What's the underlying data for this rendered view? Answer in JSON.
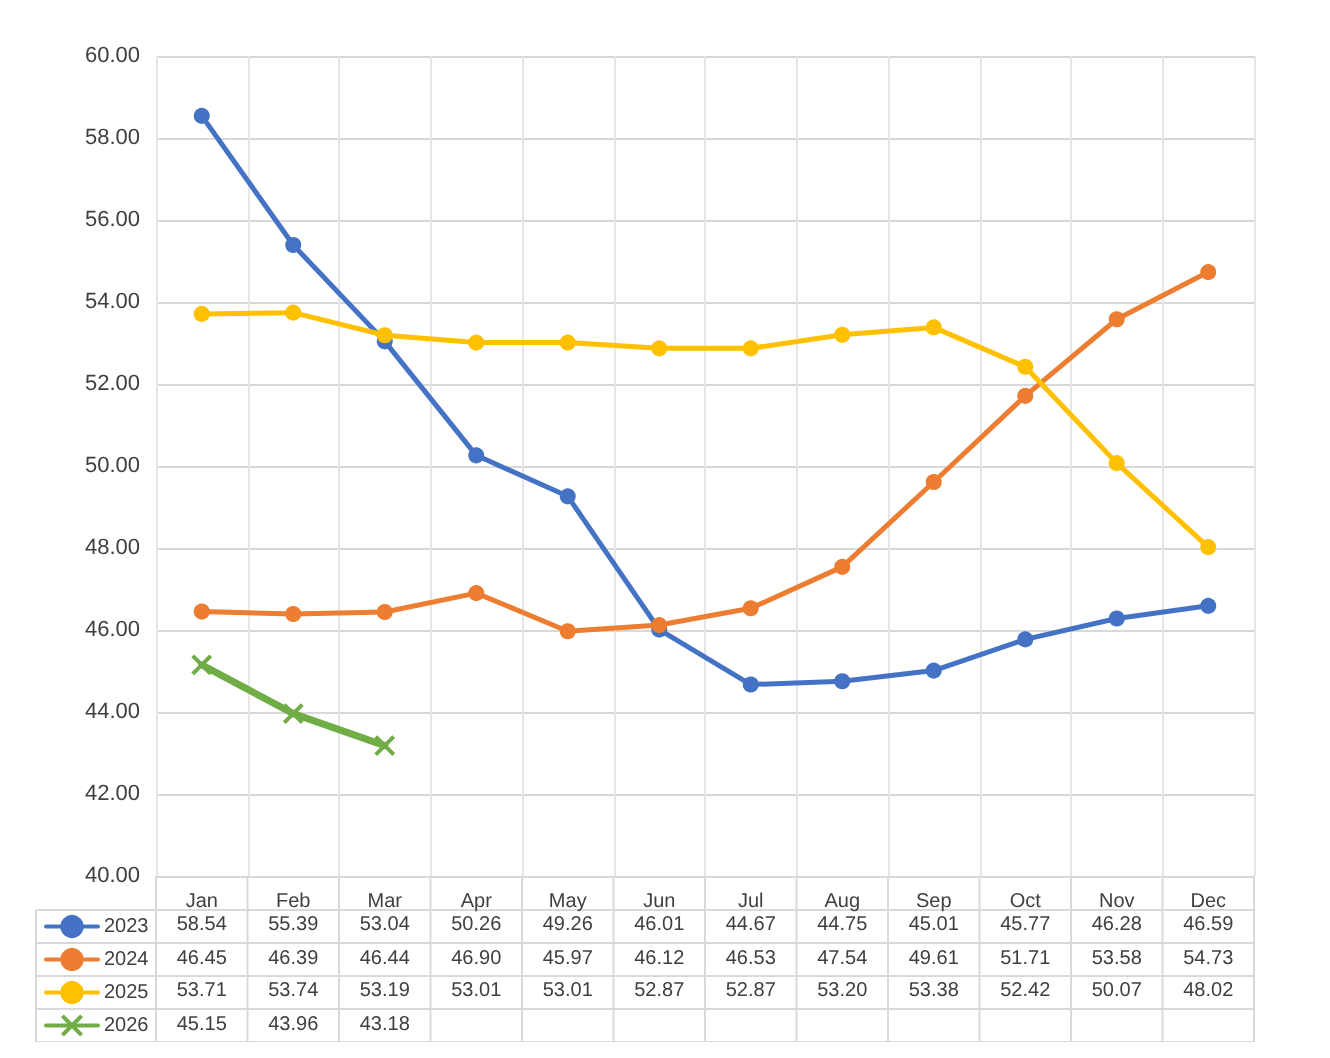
{
  "chart_data": {
    "type": "line",
    "categories": [
      "Jan",
      "Feb",
      "Mar",
      "Apr",
      "May",
      "Jun",
      "Jul",
      "Aug",
      "Sep",
      "Oct",
      "Nov",
      "Dec"
    ],
    "series": [
      {
        "name": "2023",
        "color": "#4472c4",
        "marker": "circle",
        "values": [
          58.54,
          55.39,
          53.04,
          50.26,
          49.26,
          46.01,
          44.67,
          44.75,
          45.01,
          45.77,
          46.28,
          46.59
        ],
        "value_labels": [
          "58.54",
          "55.39",
          "53.04",
          "50.26",
          "49.26",
          "46.01",
          "44.67",
          "44.75",
          "45.01",
          "45.77",
          "46.28",
          "46.59"
        ]
      },
      {
        "name": "2024",
        "color": "#ed7d31",
        "marker": "circle",
        "values": [
          46.45,
          46.39,
          46.44,
          46.9,
          45.97,
          46.12,
          46.53,
          47.54,
          49.61,
          51.71,
          53.58,
          54.73
        ],
        "value_labels": [
          "46.45",
          "46.39",
          "46.44",
          "46.90",
          "45.97",
          "46.12",
          "46.53",
          "47.54",
          "49.61",
          "51.71",
          "53.58",
          "54.73"
        ]
      },
      {
        "name": "2025",
        "color": "#ffc000",
        "marker": "circle",
        "values": [
          53.71,
          53.74,
          53.19,
          53.01,
          53.01,
          52.87,
          52.87,
          53.2,
          53.38,
          52.42,
          50.07,
          48.02
        ],
        "value_labels": [
          "53.71",
          "53.74",
          "53.19",
          "53.01",
          "53.01",
          "52.87",
          "52.87",
          "53.20",
          "53.38",
          "52.42",
          "50.07",
          "48.02"
        ]
      },
      {
        "name": "2026",
        "color": "#70ad47",
        "marker": "cross",
        "values": [
          45.15,
          43.96,
          43.18,
          null,
          null,
          null,
          null,
          null,
          null,
          null,
          null,
          null
        ],
        "value_labels": [
          "45.15",
          "43.96",
          "43.18",
          null,
          null,
          null,
          null,
          null,
          null,
          null,
          null,
          null
        ]
      }
    ],
    "ylim": [
      40,
      60
    ],
    "yticks": [
      {
        "value": 40,
        "label": "40.00"
      },
      {
        "value": 42,
        "label": "42.00"
      },
      {
        "value": 44,
        "label": "44.00"
      },
      {
        "value": 46,
        "label": "46.00"
      },
      {
        "value": 48,
        "label": "48.00"
      },
      {
        "value": 50,
        "label": "50.00"
      },
      {
        "value": 52,
        "label": "52.00"
      },
      {
        "value": 54,
        "label": "54.00"
      },
      {
        "value": 56,
        "label": "56.00"
      },
      {
        "value": 58,
        "label": "58.00"
      },
      {
        "value": 60,
        "label": "60.00"
      }
    ],
    "grid": true,
    "legend": "bottom",
    "line_style": "solid"
  }
}
